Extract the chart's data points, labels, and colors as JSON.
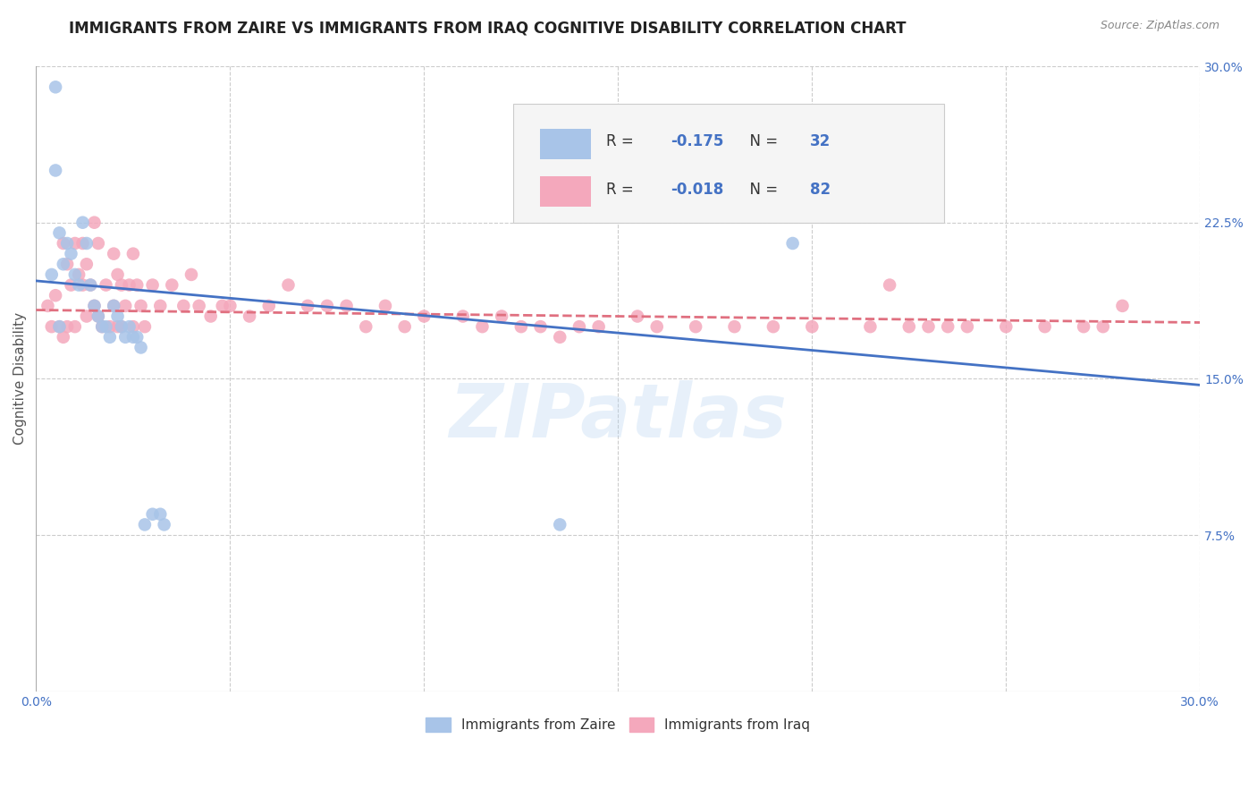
{
  "title": "IMMIGRANTS FROM ZAIRE VS IMMIGRANTS FROM IRAQ COGNITIVE DISABILITY CORRELATION CHART",
  "source": "Source: ZipAtlas.com",
  "ylabel": "Cognitive Disability",
  "xlim": [
    0.0,
    0.3
  ],
  "ylim": [
    0.0,
    0.3
  ],
  "zaire_color": "#a8c4e8",
  "iraq_color": "#f4a8bc",
  "zaire_line_color": "#4472c4",
  "iraq_line_color": "#e07080",
  "background_color": "#ffffff",
  "watermark": "ZIPatlas",
  "zaire_x": [
    0.004,
    0.005,
    0.006,
    0.007,
    0.008,
    0.009,
    0.01,
    0.011,
    0.012,
    0.013,
    0.014,
    0.015,
    0.016,
    0.017,
    0.018,
    0.019,
    0.02,
    0.021,
    0.022,
    0.023,
    0.024,
    0.025,
    0.026,
    0.027,
    0.028,
    0.03,
    0.032,
    0.033,
    0.005,
    0.006,
    0.195,
    0.135
  ],
  "zaire_y": [
    0.2,
    0.29,
    0.22,
    0.205,
    0.215,
    0.21,
    0.2,
    0.195,
    0.225,
    0.215,
    0.195,
    0.185,
    0.18,
    0.175,
    0.175,
    0.17,
    0.185,
    0.18,
    0.175,
    0.17,
    0.175,
    0.17,
    0.17,
    0.165,
    0.08,
    0.085,
    0.085,
    0.08,
    0.25,
    0.175,
    0.215,
    0.08
  ],
  "iraq_x": [
    0.003,
    0.004,
    0.005,
    0.006,
    0.007,
    0.007,
    0.008,
    0.008,
    0.009,
    0.01,
    0.01,
    0.011,
    0.012,
    0.012,
    0.013,
    0.013,
    0.014,
    0.015,
    0.015,
    0.016,
    0.016,
    0.017,
    0.018,
    0.019,
    0.02,
    0.02,
    0.021,
    0.021,
    0.022,
    0.022,
    0.023,
    0.024,
    0.025,
    0.025,
    0.026,
    0.027,
    0.028,
    0.03,
    0.032,
    0.035,
    0.038,
    0.04,
    0.042,
    0.045,
    0.048,
    0.05,
    0.055,
    0.06,
    0.065,
    0.07,
    0.075,
    0.08,
    0.085,
    0.09,
    0.095,
    0.1,
    0.11,
    0.115,
    0.12,
    0.125,
    0.13,
    0.135,
    0.14,
    0.145,
    0.155,
    0.16,
    0.17,
    0.18,
    0.19,
    0.2,
    0.21,
    0.215,
    0.22,
    0.225,
    0.23,
    0.235,
    0.24,
    0.25,
    0.26,
    0.27,
    0.275,
    0.28
  ],
  "iraq_y": [
    0.185,
    0.175,
    0.19,
    0.175,
    0.215,
    0.17,
    0.205,
    0.175,
    0.195,
    0.215,
    0.175,
    0.2,
    0.215,
    0.195,
    0.205,
    0.18,
    0.195,
    0.225,
    0.185,
    0.215,
    0.18,
    0.175,
    0.195,
    0.175,
    0.21,
    0.185,
    0.2,
    0.175,
    0.195,
    0.175,
    0.185,
    0.195,
    0.21,
    0.175,
    0.195,
    0.185,
    0.175,
    0.195,
    0.185,
    0.195,
    0.185,
    0.2,
    0.185,
    0.18,
    0.185,
    0.185,
    0.18,
    0.185,
    0.195,
    0.185,
    0.185,
    0.185,
    0.175,
    0.185,
    0.175,
    0.18,
    0.18,
    0.175,
    0.18,
    0.175,
    0.175,
    0.17,
    0.175,
    0.175,
    0.18,
    0.175,
    0.175,
    0.175,
    0.175,
    0.175,
    0.23,
    0.175,
    0.195,
    0.175,
    0.175,
    0.175,
    0.175,
    0.175,
    0.175,
    0.175,
    0.175,
    0.185
  ],
  "zaire_line_start_y": 0.197,
  "zaire_line_end_y": 0.147,
  "iraq_line_start_y": 0.183,
  "iraq_line_end_y": 0.177,
  "title_fontsize": 12,
  "axis_label_fontsize": 11,
  "tick_fontsize": 10,
  "legend_r_zaire": "R = -0.175",
  "legend_n_zaire": "N = 32",
  "legend_r_iraq": "R = -0.018",
  "legend_n_iraq": "N = 82"
}
